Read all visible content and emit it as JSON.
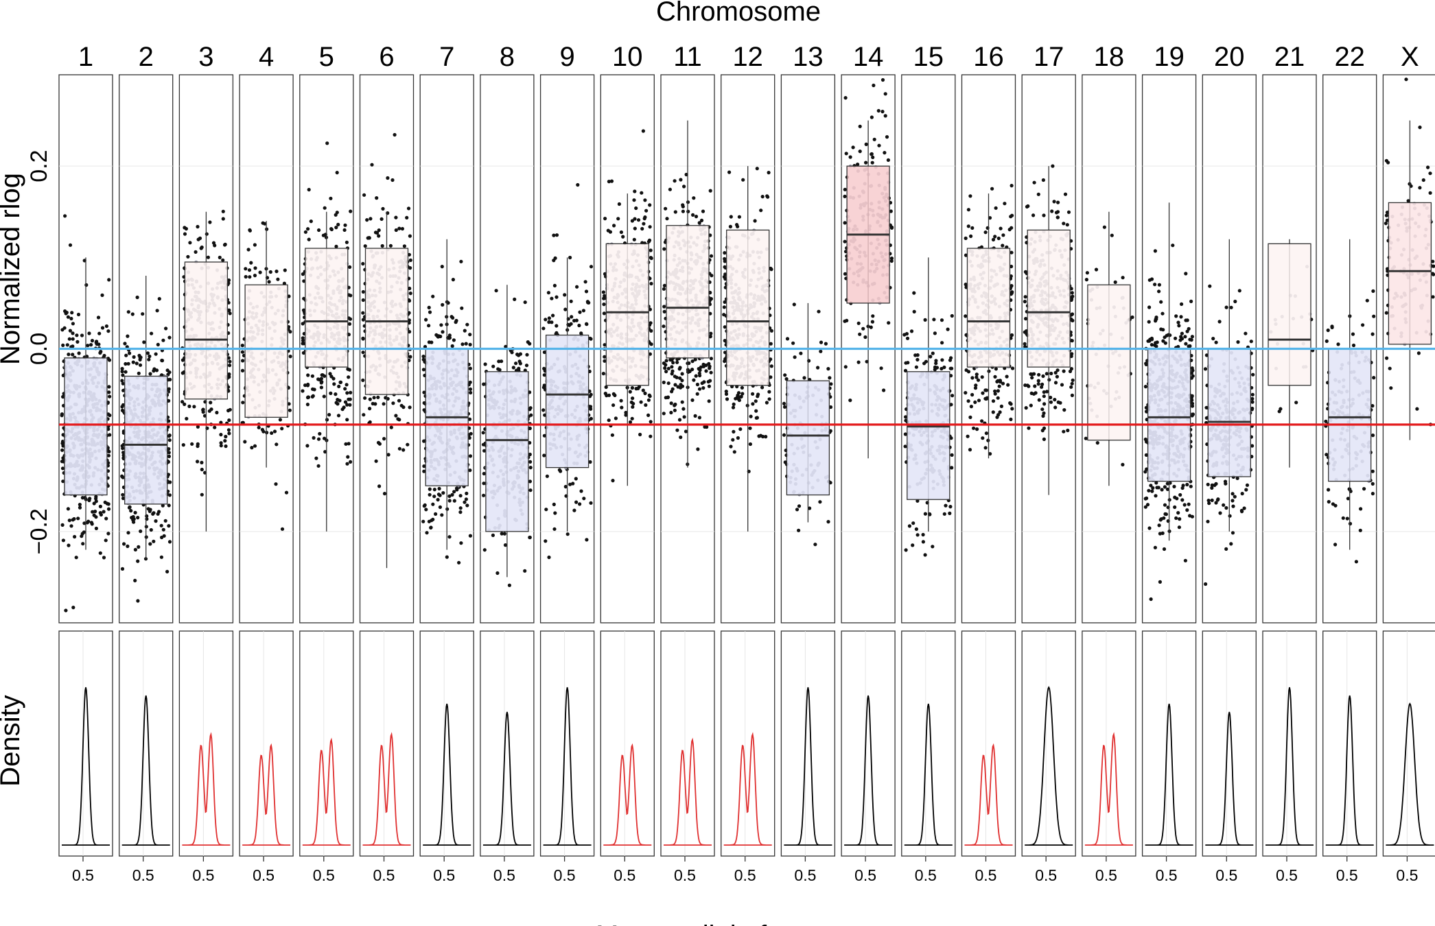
{
  "chart_data": {
    "type": "faceted box plot with jittered points and density curves",
    "top_axis_title": "Chromosome",
    "y_axis_title": "Normalized rlog",
    "density_axis_title": "Density",
    "x_axis_title": "Mutant allele frequence",
    "ylim": [
      -0.3,
      0.3
    ],
    "y_ticks": [
      {
        "value": 0.2,
        "label": "0.2"
      },
      {
        "value": 0.0,
        "label": "0.0"
      },
      {
        "value": -0.2,
        "label": "−0.2"
      }
    ],
    "x_tick_label": "0.5",
    "grid": true,
    "reference_lines": [
      {
        "value": 0.0,
        "color": "#56b4e9"
      },
      {
        "value": -0.083,
        "color": "#e41a1c"
      }
    ],
    "colors": {
      "gain_box": "#fbe3e4",
      "neutral_box": "#fdf3f1",
      "loss_box": "#e1e3f6",
      "gain_strong_box": "#f6c9cc",
      "density_normal": "#000000",
      "density_split": "#e03030",
      "point": "#111111"
    },
    "chromosomes": [
      {
        "label": "1",
        "box": {
          "q1": -0.16,
          "median": -0.083,
          "q3": -0.01,
          "lower": -0.22,
          "upper": 0.1
        },
        "fill": "loss",
        "density": "single",
        "points": 500,
        "spread": 0.08
      },
      {
        "label": "2",
        "box": {
          "q1": -0.17,
          "median": -0.105,
          "q3": -0.03,
          "lower": -0.23,
          "upper": 0.08
        },
        "fill": "loss",
        "density": "single",
        "points": 450,
        "spread": 0.08
      },
      {
        "label": "3",
        "box": {
          "q1": -0.055,
          "median": 0.01,
          "q3": 0.095,
          "lower": -0.2,
          "upper": 0.15
        },
        "fill": "neutral",
        "density": "split",
        "points": 300,
        "spread": 0.08
      },
      {
        "label": "4",
        "box": {
          "q1": -0.075,
          "median": 0.0,
          "q3": 0.07,
          "lower": -0.13,
          "upper": 0.14
        },
        "fill": "neutral",
        "density": "split",
        "points": 220,
        "spread": 0.07
      },
      {
        "label": "5",
        "box": {
          "q1": -0.02,
          "median": 0.03,
          "q3": 0.11,
          "lower": -0.2,
          "upper": 0.15
        },
        "fill": "neutral",
        "density": "split",
        "points": 300,
        "spread": 0.08
      },
      {
        "label": "6",
        "box": {
          "q1": -0.05,
          "median": 0.03,
          "q3": 0.11,
          "lower": -0.24,
          "upper": 0.15
        },
        "fill": "neutral",
        "density": "split",
        "points": 300,
        "spread": 0.08
      },
      {
        "label": "7",
        "box": {
          "q1": -0.15,
          "median": -0.075,
          "q3": 0.0,
          "lower": -0.22,
          "upper": 0.12
        },
        "fill": "loss",
        "density": "single",
        "points": 350,
        "spread": 0.08
      },
      {
        "label": "8",
        "box": {
          "q1": -0.2,
          "median": -0.1,
          "q3": -0.025,
          "lower": -0.25,
          "upper": 0.07
        },
        "fill": "loss",
        "density": "single",
        "points": 280,
        "spread": 0.08
      },
      {
        "label": "9",
        "box": {
          "q1": -0.13,
          "median": -0.05,
          "q3": 0.015,
          "lower": -0.2,
          "upper": 0.1
        },
        "fill": "loss",
        "density": "single",
        "points": 240,
        "spread": 0.08
      },
      {
        "label": "10",
        "box": {
          "q1": -0.04,
          "median": 0.04,
          "q3": 0.115,
          "lower": -0.15,
          "upper": 0.17
        },
        "fill": "neutral",
        "density": "split",
        "points": 330,
        "spread": 0.08
      },
      {
        "label": "11",
        "box": {
          "q1": -0.01,
          "median": 0.045,
          "q3": 0.135,
          "lower": -0.13,
          "upper": 0.25
        },
        "fill": "neutral",
        "density": "split",
        "points": 380,
        "spread": 0.08
      },
      {
        "label": "12",
        "box": {
          "q1": -0.04,
          "median": 0.03,
          "q3": 0.13,
          "lower": -0.2,
          "upper": 0.2
        },
        "fill": "neutral",
        "density": "split",
        "points": 380,
        "spread": 0.08
      },
      {
        "label": "13",
        "box": {
          "q1": -0.16,
          "median": -0.095,
          "q3": -0.035,
          "lower": -0.19,
          "upper": 0.05
        },
        "fill": "loss",
        "density": "single",
        "points": 120,
        "spread": 0.06
      },
      {
        "label": "14",
        "box": {
          "q1": 0.05,
          "median": 0.125,
          "q3": 0.2,
          "lower": -0.12,
          "upper": 0.25
        },
        "fill": "gain",
        "density": "single",
        "points": 200,
        "spread": 0.08
      },
      {
        "label": "15",
        "box": {
          "q1": -0.165,
          "median": -0.085,
          "q3": -0.025,
          "lower": -0.2,
          "upper": 0.1
        },
        "fill": "loss",
        "density": "single",
        "points": 250,
        "spread": 0.07
      },
      {
        "label": "16",
        "box": {
          "q1": -0.02,
          "median": 0.03,
          "q3": 0.11,
          "lower": -0.12,
          "upper": 0.17
        },
        "fill": "neutral",
        "density": "split",
        "points": 300,
        "spread": 0.08
      },
      {
        "label": "17",
        "box": {
          "q1": -0.02,
          "median": 0.04,
          "q3": 0.13,
          "lower": -0.16,
          "upper": 0.2
        },
        "fill": "neutral",
        "density": "single",
        "points": 340,
        "spread": 0.08
      },
      {
        "label": "18",
        "box": {
          "q1": -0.1,
          "median": 0.0,
          "q3": 0.07,
          "lower": -0.15,
          "upper": 0.15
        },
        "fill": "neutral",
        "density": "split",
        "points": 60,
        "spread": 0.07
      },
      {
        "label": "19",
        "box": {
          "q1": -0.145,
          "median": -0.075,
          "q3": 0.0,
          "lower": -0.21,
          "upper": 0.16
        },
        "fill": "loss",
        "density": "single",
        "points": 480,
        "spread": 0.08
      },
      {
        "label": "20",
        "box": {
          "q1": -0.14,
          "median": -0.08,
          "q3": 0.0,
          "lower": -0.2,
          "upper": 0.12
        },
        "fill": "loss",
        "density": "single",
        "points": 260,
        "spread": 0.07
      },
      {
        "label": "21",
        "box": {
          "q1": -0.04,
          "median": 0.01,
          "q3": 0.115,
          "lower": -0.13,
          "upper": 0.12
        },
        "fill": "neutral",
        "density": "single",
        "points": 20,
        "spread": 0.07
      },
      {
        "label": "22",
        "box": {
          "q1": -0.145,
          "median": -0.075,
          "q3": 0.0,
          "lower": -0.22,
          "upper": 0.12
        },
        "fill": "loss",
        "density": "single",
        "points": 160,
        "spread": 0.07
      },
      {
        "label": "X",
        "box": {
          "q1": 0.005,
          "median": 0.085,
          "q3": 0.16,
          "lower": -0.1,
          "upper": 0.25
        },
        "fill": "gain",
        "density": "single",
        "points": 120,
        "spread": 0.08
      }
    ]
  }
}
